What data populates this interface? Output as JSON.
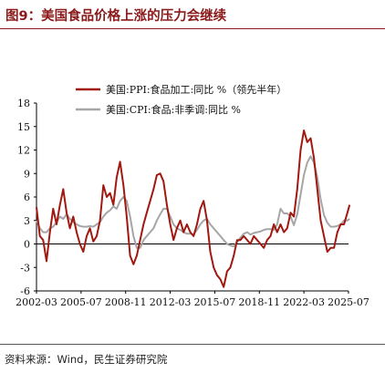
{
  "figure": {
    "title": "图9：美国食品价格上涨的压力会继续",
    "source": "资料来源：Wind，民生证券研究院"
  },
  "chart_data": {
    "type": "line",
    "title": "",
    "xlabel": "",
    "ylabel": "",
    "ylim": [
      -6,
      18
    ],
    "xlim": [
      "2002-03",
      "2025-07"
    ],
    "grid": false,
    "legend_position": "top-center",
    "x_tick_labels": [
      "2002-03",
      "2005-07",
      "2008-11",
      "2012-03",
      "2015-07",
      "2018-11",
      "2022-03",
      "2025-07"
    ],
    "y_tick_labels": [
      "-6",
      "-3",
      "0",
      "3",
      "6",
      "9",
      "12",
      "15",
      "18"
    ],
    "series": [
      {
        "name": "美国:PPI:食品加工:同比 %（领先半年）",
        "color": "#a0180f",
        "points": [
          [
            "2002-03",
            4.7
          ],
          [
            "2002-06",
            1.0
          ],
          [
            "2002-09",
            0.5
          ],
          [
            "2002-12",
            -2.2
          ],
          [
            "2003-03",
            1.5
          ],
          [
            "2003-06",
            4.5
          ],
          [
            "2003-09",
            2.5
          ],
          [
            "2003-12",
            5.0
          ],
          [
            "2004-03",
            7.0
          ],
          [
            "2004-06",
            4.0
          ],
          [
            "2004-09",
            2.0
          ],
          [
            "2004-12",
            3.5
          ],
          [
            "2005-03",
            1.5
          ],
          [
            "2005-06",
            0.0
          ],
          [
            "2005-09",
            -1.0
          ],
          [
            "2005-12",
            1.0
          ],
          [
            "2006-03",
            2.0
          ],
          [
            "2006-06",
            0.3
          ],
          [
            "2006-09",
            1.0
          ],
          [
            "2006-12",
            3.0
          ],
          [
            "2007-03",
            7.5
          ],
          [
            "2007-06",
            6.0
          ],
          [
            "2007-09",
            6.5
          ],
          [
            "2007-12",
            5.0
          ],
          [
            "2008-03",
            8.5
          ],
          [
            "2008-06",
            10.5
          ],
          [
            "2008-09",
            7.5
          ],
          [
            "2008-12",
            3.5
          ],
          [
            "2009-03",
            -1.5
          ],
          [
            "2009-06",
            -2.6
          ],
          [
            "2009-09",
            -1.5
          ],
          [
            "2009-12",
            0.5
          ],
          [
            "2010-03",
            2.5
          ],
          [
            "2010-06",
            4.0
          ],
          [
            "2010-09",
            5.5
          ],
          [
            "2010-12",
            7.0
          ],
          [
            "2011-03",
            8.8
          ],
          [
            "2011-06",
            9.0
          ],
          [
            "2011-09",
            8.0
          ],
          [
            "2011-12",
            5.0
          ],
          [
            "2012-03",
            2.5
          ],
          [
            "2012-06",
            0.5
          ],
          [
            "2012-09",
            2.0
          ],
          [
            "2012-12",
            3.0
          ],
          [
            "2013-03",
            1.5
          ],
          [
            "2013-06",
            2.5
          ],
          [
            "2013-09",
            1.5
          ],
          [
            "2013-12",
            1.0
          ],
          [
            "2014-03",
            2.5
          ],
          [
            "2014-06",
            4.5
          ],
          [
            "2014-09",
            5.5
          ],
          [
            "2014-12",
            3.0
          ],
          [
            "2015-03",
            -1.0
          ],
          [
            "2015-06",
            -3.0
          ],
          [
            "2015-09",
            -4.0
          ],
          [
            "2015-12",
            -4.5
          ],
          [
            "2016-03",
            -5.5
          ],
          [
            "2016-06",
            -3.5
          ],
          [
            "2016-09",
            -3.0
          ],
          [
            "2016-12",
            -1.5
          ],
          [
            "2017-03",
            0.5
          ],
          [
            "2017-06",
            0.5
          ],
          [
            "2017-09",
            1.0
          ],
          [
            "2017-12",
            0.5
          ],
          [
            "2018-03",
            0.0
          ],
          [
            "2018-06",
            1.0
          ],
          [
            "2018-09",
            0.5
          ],
          [
            "2018-12",
            0.0
          ],
          [
            "2019-03",
            -0.5
          ],
          [
            "2019-06",
            0.5
          ],
          [
            "2019-09",
            1.0
          ],
          [
            "2019-12",
            2.5
          ],
          [
            "2020-03",
            1.5
          ],
          [
            "2020-06",
            2.5
          ],
          [
            "2020-09",
            1.5
          ],
          [
            "2020-12",
            2.0
          ],
          [
            "2021-03",
            4.0
          ],
          [
            "2021-06",
            3.5
          ],
          [
            "2021-09",
            7.0
          ],
          [
            "2021-12",
            12.0
          ],
          [
            "2022-03",
            14.5
          ],
          [
            "2022-06",
            13.0
          ],
          [
            "2022-09",
            13.5
          ],
          [
            "2022-12",
            11.0
          ],
          [
            "2023-03",
            7.0
          ],
          [
            "2023-06",
            3.0
          ],
          [
            "2023-09",
            1.0
          ],
          [
            "2023-12",
            -1.0
          ],
          [
            "2024-03",
            -0.5
          ],
          [
            "2024-06",
            -0.5
          ],
          [
            "2024-09",
            1.5
          ],
          [
            "2024-12",
            2.5
          ],
          [
            "2025-03",
            2.5
          ],
          [
            "2025-06",
            4.0
          ],
          [
            "2025-08",
            5.0
          ]
        ]
      },
      {
        "name": "美国:CPI:食品:非季调:同比 %",
        "color": "#a6a6a6",
        "points": [
          [
            "2002-03",
            3.0
          ],
          [
            "2002-06",
            2.0
          ],
          [
            "2002-09",
            1.5
          ],
          [
            "2002-12",
            1.5
          ],
          [
            "2003-03",
            2.0
          ],
          [
            "2003-06",
            2.2
          ],
          [
            "2003-09",
            2.8
          ],
          [
            "2003-12",
            3.5
          ],
          [
            "2004-03",
            3.2
          ],
          [
            "2004-06",
            3.8
          ],
          [
            "2004-09",
            3.2
          ],
          [
            "2004-12",
            2.8
          ],
          [
            "2005-03",
            2.5
          ],
          [
            "2005-06",
            2.3
          ],
          [
            "2005-09",
            2.2
          ],
          [
            "2005-12",
            2.2
          ],
          [
            "2006-03",
            2.3
          ],
          [
            "2006-06",
            2.2
          ],
          [
            "2006-09",
            2.5
          ],
          [
            "2006-12",
            2.8
          ],
          [
            "2007-03",
            3.5
          ],
          [
            "2007-06",
            4.0
          ],
          [
            "2007-09",
            4.3
          ],
          [
            "2007-12",
            4.8
          ],
          [
            "2008-03",
            4.5
          ],
          [
            "2008-06",
            5.5
          ],
          [
            "2008-09",
            6.0
          ],
          [
            "2008-12",
            5.5
          ],
          [
            "2009-03",
            3.5
          ],
          [
            "2009-06",
            1.0
          ],
          [
            "2009-09",
            -0.5
          ],
          [
            "2009-12",
            -0.5
          ],
          [
            "2010-03",
            0.5
          ],
          [
            "2010-06",
            1.0
          ],
          [
            "2010-09",
            1.5
          ],
          [
            "2010-12",
            2.0
          ],
          [
            "2011-03",
            3.0
          ],
          [
            "2011-06",
            3.8
          ],
          [
            "2011-09",
            4.5
          ],
          [
            "2011-12",
            4.5
          ],
          [
            "2012-03",
            3.5
          ],
          [
            "2012-06",
            2.5
          ],
          [
            "2012-09",
            2.0
          ],
          [
            "2012-12",
            1.8
          ],
          [
            "2013-03",
            1.5
          ],
          [
            "2013-06",
            1.3
          ],
          [
            "2013-09",
            1.3
          ],
          [
            "2013-12",
            1.2
          ],
          [
            "2014-03",
            1.8
          ],
          [
            "2014-06",
            2.5
          ],
          [
            "2014-09",
            3.0
          ],
          [
            "2014-12",
            3.2
          ],
          [
            "2015-03",
            2.5
          ],
          [
            "2015-06",
            2.0
          ],
          [
            "2015-09",
            1.5
          ],
          [
            "2015-12",
            1.0
          ],
          [
            "2016-03",
            0.5
          ],
          [
            "2016-06",
            0.0
          ],
          [
            "2016-09",
            -0.2
          ],
          [
            "2016-12",
            -0.3
          ],
          [
            "2017-03",
            0.2
          ],
          [
            "2017-06",
            0.8
          ],
          [
            "2017-09",
            1.3
          ],
          [
            "2017-12",
            1.5
          ],
          [
            "2018-03",
            1.2
          ],
          [
            "2018-06",
            1.4
          ],
          [
            "2018-09",
            1.5
          ],
          [
            "2018-12",
            1.6
          ],
          [
            "2019-03",
            1.8
          ],
          [
            "2019-06",
            1.9
          ],
          [
            "2019-09",
            1.9
          ],
          [
            "2019-12",
            1.8
          ],
          [
            "2020-03",
            2.5
          ],
          [
            "2020-06",
            4.5
          ],
          [
            "2020-09",
            3.9
          ],
          [
            "2020-12",
            3.9
          ],
          [
            "2021-03",
            3.5
          ],
          [
            "2021-06",
            2.4
          ],
          [
            "2021-09",
            3.8
          ],
          [
            "2021-12",
            6.3
          ],
          [
            "2022-03",
            8.8
          ],
          [
            "2022-06",
            10.4
          ],
          [
            "2022-09",
            11.2
          ],
          [
            "2022-12",
            10.4
          ],
          [
            "2023-03",
            8.5
          ],
          [
            "2023-06",
            5.7
          ],
          [
            "2023-09",
            3.7
          ],
          [
            "2023-12",
            2.7
          ],
          [
            "2024-03",
            2.2
          ],
          [
            "2024-06",
            2.2
          ],
          [
            "2024-09",
            2.3
          ],
          [
            "2024-12",
            2.5
          ],
          [
            "2025-03",
            3.0
          ],
          [
            "2025-06",
            3.0
          ],
          [
            "2025-08",
            3.2
          ]
        ]
      }
    ]
  }
}
